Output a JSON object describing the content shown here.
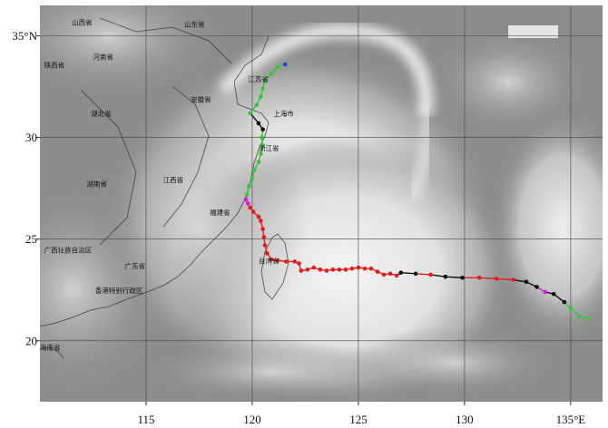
{
  "map": {
    "lon_range": [
      110,
      136.5
    ],
    "lat_range": [
      17,
      36.5
    ],
    "gridlines": true,
    "x_ticks": [
      {
        "value": 115,
        "label": "115"
      },
      {
        "value": 120,
        "label": "120"
      },
      {
        "value": 125,
        "label": "125"
      },
      {
        "value": 130,
        "label": "130"
      },
      {
        "value": 135,
        "label": "135°E"
      }
    ],
    "y_ticks": [
      {
        "value": 35,
        "label": "35°N"
      },
      {
        "value": 30,
        "label": "30"
      },
      {
        "value": 25,
        "label": "25"
      },
      {
        "value": 20,
        "label": "20"
      }
    ]
  },
  "province_labels": [
    {
      "name": "山西省",
      "lon": 111.5,
      "lat": 35.55
    },
    {
      "name": "山东省",
      "lon": 116.8,
      "lat": 35.45
    },
    {
      "name": "陕西省",
      "lon": 110.2,
      "lat": 33.45
    },
    {
      "name": "河南省",
      "lon": 112.5,
      "lat": 33.85
    },
    {
      "name": "江苏省",
      "lon": 119.8,
      "lat": 32.75
    },
    {
      "name": "安徽省",
      "lon": 117.1,
      "lat": 31.75
    },
    {
      "name": "湖北省",
      "lon": 112.4,
      "lat": 31.05
    },
    {
      "name": "上海市",
      "lon": 121.0,
      "lat": 31.05
    },
    {
      "name": "浙江省",
      "lon": 120.3,
      "lat": 29.35
    },
    {
      "name": "江西省",
      "lon": 115.8,
      "lat": 27.8
    },
    {
      "name": "湖南省",
      "lon": 112.2,
      "lat": 27.6
    },
    {
      "name": "福建省",
      "lon": 118.0,
      "lat": 26.2
    },
    {
      "name": "台湾省",
      "lon": 120.3,
      "lat": 23.8
    },
    {
      "name": "广西壮族自治区",
      "lon": 110.2,
      "lat": 24.35
    },
    {
      "name": "广东省",
      "lon": 114.0,
      "lat": 23.55
    },
    {
      "name": "香港特别行政区",
      "lon": 112.6,
      "lat": 22.35
    },
    {
      "name": "海南省",
      "lon": 110.0,
      "lat": 19.55
    }
  ],
  "track": {
    "colors": {
      "blue": "#1f3fd8",
      "green": "#3cc23c",
      "black": "#111111",
      "magenta": "#d020d0",
      "red": "#e21d1d"
    },
    "points": [
      {
        "lon": 135.8,
        "lat": 21.1,
        "c": "green"
      },
      {
        "lon": 135.4,
        "lat": 21.2,
        "c": "green"
      },
      {
        "lon": 135.0,
        "lat": 21.6,
        "c": "green"
      },
      {
        "lon": 134.7,
        "lat": 21.9,
        "c": "black"
      },
      {
        "lon": 134.2,
        "lat": 22.3,
        "c": "black"
      },
      {
        "lon": 133.8,
        "lat": 22.4,
        "c": "magenta"
      },
      {
        "lon": 133.4,
        "lat": 22.65,
        "c": "black"
      },
      {
        "lon": 132.9,
        "lat": 22.9,
        "c": "black"
      },
      {
        "lon": 132.3,
        "lat": 23.0,
        "c": "red"
      },
      {
        "lon": 131.5,
        "lat": 23.05,
        "c": "red"
      },
      {
        "lon": 130.7,
        "lat": 23.1,
        "c": "red"
      },
      {
        "lon": 129.9,
        "lat": 23.1,
        "c": "black"
      },
      {
        "lon": 129.1,
        "lat": 23.15,
        "c": "black"
      },
      {
        "lon": 128.4,
        "lat": 23.25,
        "c": "red"
      },
      {
        "lon": 127.7,
        "lat": 23.3,
        "c": "black"
      },
      {
        "lon": 127.0,
        "lat": 23.35,
        "c": "black"
      },
      {
        "lon": 126.8,
        "lat": 23.2,
        "c": "red"
      },
      {
        "lon": 126.5,
        "lat": 23.3,
        "c": "red"
      },
      {
        "lon": 126.2,
        "lat": 23.25,
        "c": "red"
      },
      {
        "lon": 125.9,
        "lat": 23.4,
        "c": "red"
      },
      {
        "lon": 125.6,
        "lat": 23.55,
        "c": "red"
      },
      {
        "lon": 125.3,
        "lat": 23.55,
        "c": "red"
      },
      {
        "lon": 125.0,
        "lat": 23.6,
        "c": "red"
      },
      {
        "lon": 124.7,
        "lat": 23.55,
        "c": "red"
      },
      {
        "lon": 124.4,
        "lat": 23.5,
        "c": "red"
      },
      {
        "lon": 124.1,
        "lat": 23.5,
        "c": "red"
      },
      {
        "lon": 123.8,
        "lat": 23.5,
        "c": "red"
      },
      {
        "lon": 123.5,
        "lat": 23.45,
        "c": "red"
      },
      {
        "lon": 123.2,
        "lat": 23.5,
        "c": "red"
      },
      {
        "lon": 122.9,
        "lat": 23.6,
        "c": "red"
      },
      {
        "lon": 122.6,
        "lat": 23.5,
        "c": "red"
      },
      {
        "lon": 122.3,
        "lat": 23.45,
        "c": "red"
      },
      {
        "lon": 122.2,
        "lat": 23.8,
        "c": "red"
      },
      {
        "lon": 122.0,
        "lat": 23.9,
        "c": "red"
      },
      {
        "lon": 121.6,
        "lat": 23.9,
        "c": "red"
      },
      {
        "lon": 121.2,
        "lat": 23.95,
        "c": "red"
      },
      {
        "lon": 120.9,
        "lat": 24.0,
        "c": "red"
      },
      {
        "lon": 120.7,
        "lat": 24.3,
        "c": "red"
      },
      {
        "lon": 120.6,
        "lat": 24.7,
        "c": "red"
      },
      {
        "lon": 120.55,
        "lat": 25.1,
        "c": "red"
      },
      {
        "lon": 120.5,
        "lat": 25.5,
        "c": "red"
      },
      {
        "lon": 120.4,
        "lat": 25.9,
        "c": "red"
      },
      {
        "lon": 120.3,
        "lat": 26.1,
        "c": "red"
      },
      {
        "lon": 120.05,
        "lat": 26.35,
        "c": "red"
      },
      {
        "lon": 119.9,
        "lat": 26.55,
        "c": "red"
      },
      {
        "lon": 119.8,
        "lat": 26.75,
        "c": "magenta"
      },
      {
        "lon": 119.7,
        "lat": 26.95,
        "c": "magenta"
      },
      {
        "lon": 119.75,
        "lat": 27.2,
        "c": "green"
      },
      {
        "lon": 119.85,
        "lat": 27.6,
        "c": "green"
      },
      {
        "lon": 120.0,
        "lat": 28.0,
        "c": "green"
      },
      {
        "lon": 120.1,
        "lat": 28.4,
        "c": "green"
      },
      {
        "lon": 120.3,
        "lat": 28.8,
        "c": "green"
      },
      {
        "lon": 120.4,
        "lat": 29.2,
        "c": "green"
      },
      {
        "lon": 120.5,
        "lat": 29.6,
        "c": "green"
      },
      {
        "lon": 120.45,
        "lat": 30.0,
        "c": "green"
      },
      {
        "lon": 120.5,
        "lat": 30.4,
        "c": "black"
      },
      {
        "lon": 120.3,
        "lat": 30.7,
        "c": "black"
      },
      {
        "lon": 119.9,
        "lat": 31.2,
        "c": "green"
      },
      {
        "lon": 120.2,
        "lat": 31.6,
        "c": "green"
      },
      {
        "lon": 120.4,
        "lat": 32.0,
        "c": "green"
      },
      {
        "lon": 120.5,
        "lat": 32.4,
        "c": "green"
      },
      {
        "lon": 120.6,
        "lat": 32.8,
        "c": "green"
      },
      {
        "lon": 120.9,
        "lat": 33.15,
        "c": "green"
      },
      {
        "lon": 121.2,
        "lat": 33.45,
        "c": "green"
      },
      {
        "lon": 121.55,
        "lat": 33.6,
        "c": "blue"
      }
    ]
  }
}
